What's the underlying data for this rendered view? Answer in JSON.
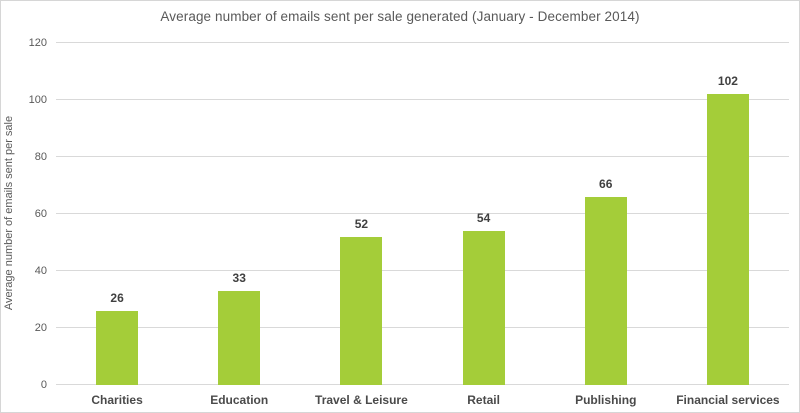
{
  "chart_data": {
    "type": "bar",
    "title": "Average number of emails sent per sale generated (January - December 2014)",
    "categories": [
      "Charities",
      "Education",
      "Travel & Leisure",
      "Retail",
      "Publishing",
      "Financial services"
    ],
    "values": [
      26,
      33,
      52,
      54,
      66,
      102
    ],
    "xlabel": "",
    "ylabel": "Average number of emails sent per sale",
    "ylim": [
      0,
      120
    ],
    "yticks": [
      0,
      20,
      40,
      60,
      80,
      100,
      120
    ],
    "grid": true,
    "legend": "none",
    "colors": {
      "bar_fill": "#a4cd39",
      "gridline": "#d9d9d9",
      "title_text": "#595959",
      "axis_text": "#595959",
      "value_label_text": "#404040"
    }
  }
}
